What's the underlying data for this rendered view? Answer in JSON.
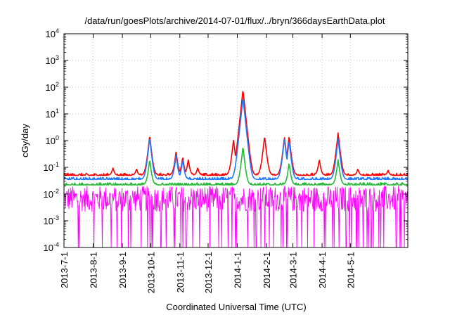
{
  "chart_data": {
    "type": "line",
    "title": "/data/run/goesPlots/archive/2014-07-01/flux/../bryn/366daysEarthData.plot",
    "xlabel": "Coordinated Universal Time (UTC)",
    "ylabel": "cGy/day",
    "yscale": "log",
    "ylim": [
      0.0001,
      10000
    ],
    "xlim": [
      "2013-07-01",
      "2014-07-01"
    ],
    "grid": true,
    "y_ticks": [
      {
        "value": 0.0001,
        "base": "10",
        "exp": "-4"
      },
      {
        "value": 0.001,
        "base": "10",
        "exp": "-3"
      },
      {
        "value": 0.01,
        "base": "10",
        "exp": "-2"
      },
      {
        "value": 0.1,
        "base": "10",
        "exp": "-1"
      },
      {
        "value": 1,
        "base": "10",
        "exp": "0"
      },
      {
        "value": 10,
        "base": "10",
        "exp": "1"
      },
      {
        "value": 100,
        "base": "10",
        "exp": "2"
      },
      {
        "value": 1000,
        "base": "10",
        "exp": "3"
      },
      {
        "value": 10000,
        "base": "10",
        "exp": "4"
      }
    ],
    "x_ticks": [
      "2013-7-1",
      "2013-8-1",
      "2013-9-1",
      "2013-10-1",
      "2013-11-1",
      "2013-12-1",
      "2014-1-1",
      "2014-2-1",
      "2014-3-1",
      "2014-4-1",
      "2014-5-1"
    ],
    "series": [
      {
        "color": "#ff0000",
        "baseline": 0.05,
        "peaks": [
          [
            "2013-08-22",
            0.1
          ],
          [
            "2013-09-16",
            0.09
          ],
          [
            "2013-09-30",
            1.6
          ],
          [
            "2013-10-28",
            0.4
          ],
          [
            "2013-11-04",
            0.25
          ],
          [
            "2013-11-10",
            0.2
          ],
          [
            "2013-11-20",
            0.1
          ],
          [
            "2013-12-28",
            1.1
          ],
          [
            "2014-01-07",
            80
          ],
          [
            "2014-01-30",
            1.5
          ],
          [
            "2014-02-20",
            1.4
          ],
          [
            "2014-02-25",
            1.5
          ],
          [
            "2014-03-29",
            0.2
          ],
          [
            "2014-04-18",
            2.0
          ],
          [
            "2014-05-09",
            0.09
          ],
          [
            "2014-06-10",
            0.08
          ]
        ]
      },
      {
        "color": "#1e78ff",
        "baseline": 0.035,
        "peaks": [
          [
            "2013-09-30",
            1.3
          ],
          [
            "2013-10-28",
            0.3
          ],
          [
            "2013-11-04",
            0.2
          ],
          [
            "2014-01-07",
            40
          ],
          [
            "2014-02-20",
            1.2
          ],
          [
            "2014-02-25",
            1.0
          ],
          [
            "2014-04-18",
            1.2
          ]
        ]
      },
      {
        "color": "#22bb33",
        "baseline": 0.022,
        "peaks": [
          [
            "2013-09-30",
            0.2
          ],
          [
            "2014-01-07",
            0.6
          ],
          [
            "2014-02-25",
            0.15
          ],
          [
            "2014-04-18",
            0.2
          ]
        ]
      },
      {
        "color": "#ff00ff",
        "baseline": 0.02,
        "floor": 0.0022,
        "dropouts_to": 0.0001
      }
    ],
    "colors": {
      "red": "#ff0000",
      "blue": "#1e78ff",
      "green": "#22bb33",
      "magenta": "#ff00ff"
    }
  }
}
